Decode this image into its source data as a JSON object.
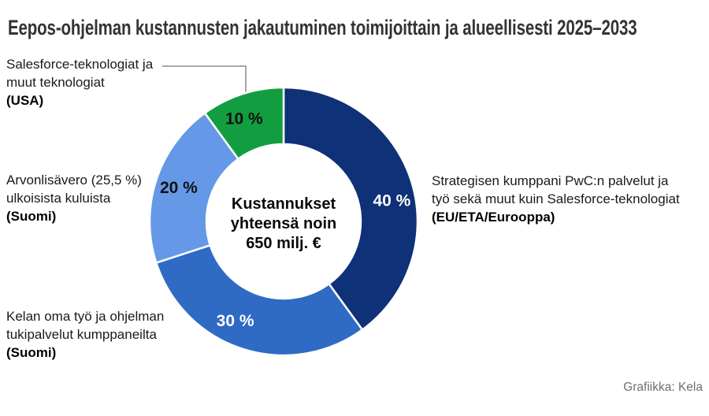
{
  "title": "Eepos-ohjelman kustannusten jakautuminen toimijoittain ja alueellisesti 2025–2033",
  "credit": "Grafiikka: Kela",
  "center_label": {
    "line1": "Kustannukset",
    "line2": "yhteensä noin",
    "line3": "650 milj. €"
  },
  "callouts": {
    "salesforce": {
      "line1": "Salesforce-teknologiat ja",
      "line2": "muut teknologiat",
      "line3": "(USA)"
    },
    "alv": {
      "line1": "Arvonlisävero (25,5 %)",
      "line2": "ulkoisista kuluista",
      "line3": "(Suomi)"
    },
    "kela": {
      "line1": "Kelan oma työ ja ohjelman",
      "line2": "tukipalvelut kumppaneilta",
      "line3": "(Suomi)"
    },
    "pwc": {
      "line1": "Strategisen kumppani PwC:n palvelut ja",
      "line2": "työ sekä muut kuin Salesforce-teknologiat",
      "line3": "(EU/ETA/Eurooppa)"
    }
  },
  "chart_data": {
    "type": "pie",
    "subtype": "donut",
    "title": "Eepos-ohjelman kustannusten jakautuminen toimijoittain ja alueellisesti 2025–2033",
    "unit": "%",
    "direction": "clockwise",
    "start_angle_deg": 0,
    "center_text": "Kustannukset yhteensä noin 650 milj. €",
    "total_label": "650 milj. €",
    "legend_position": "callouts-around-chart",
    "segments": [
      {
        "name": "Strategisen kumppani PwC:n palvelut ja työ sekä muut kuin Salesforce-teknologiat (EU/ETA/Eurooppa)",
        "value": 40,
        "label": "40 %",
        "color": "#0e3177",
        "label_color": "#ffffff"
      },
      {
        "name": "Kelan oma työ ja ohjelman tukipalvelut kumppaneilta (Suomi)",
        "value": 30,
        "label": "30 %",
        "color": "#2f6ac5",
        "label_color": "#ffffff"
      },
      {
        "name": "Arvonlisävero (25,5 %) ulkoisista kuluista (Suomi)",
        "value": 20,
        "label": "20 %",
        "color": "#6599e7",
        "label_color": "#111111"
      },
      {
        "name": "Salesforce-teknologiat ja muut teknologiat (USA)",
        "value": 10,
        "label": "10 %",
        "color": "#129e40",
        "label_color": "#111111"
      }
    ]
  }
}
